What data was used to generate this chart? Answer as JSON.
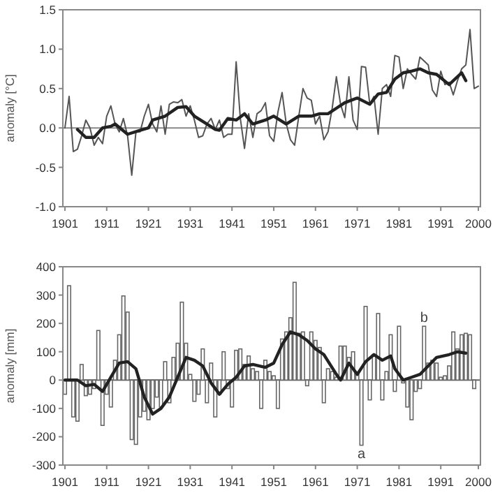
{
  "chart_data": [
    {
      "type": "line",
      "ylabel": "anomaly [°C]",
      "xlim": [
        1900.5,
        2000.5
      ],
      "xticks": [
        1901,
        1911,
        1921,
        1931,
        1941,
        1951,
        1961,
        1971,
        1981,
        1991,
        2000
      ],
      "ylim": [
        -1,
        1.5
      ],
      "yticks": [
        {
          "value": -1,
          "label": "-1.0"
        },
        -0.5,
        {
          "value": 0,
          "label": "0.0"
        },
        0.5,
        {
          "value": 1,
          "label": "1.0"
        },
        1.5
      ],
      "grid": false,
      "ref_lines": [
        {
          "axis": "y",
          "value": 0,
          "color": "#888888"
        }
      ],
      "x": [
        1901,
        1902,
        1903,
        1904,
        1905,
        1906,
        1907,
        1908,
        1909,
        1910,
        1911,
        1912,
        1913,
        1914,
        1915,
        1916,
        1917,
        1918,
        1919,
        1920,
        1921,
        1922,
        1923,
        1924,
        1925,
        1926,
        1927,
        1928,
        1929,
        1930,
        1931,
        1932,
        1933,
        1934,
        1935,
        1936,
        1937,
        1938,
        1939,
        1940,
        1941,
        1942,
        1943,
        1944,
        1945,
        1946,
        1947,
        1948,
        1949,
        1950,
        1951,
        1952,
        1953,
        1954,
        1955,
        1956,
        1957,
        1958,
        1959,
        1960,
        1961,
        1962,
        1963,
        1964,
        1965,
        1966,
        1967,
        1968,
        1969,
        1970,
        1971,
        1972,
        1973,
        1974,
        1975,
        1976,
        1977,
        1978,
        1979,
        1980,
        1981,
        1982,
        1983,
        1984,
        1985,
        1986,
        1987,
        1988,
        1989,
        1990,
        1991,
        1992,
        1993,
        1994,
        1995,
        1996,
        1997,
        1998,
        1999,
        2000
      ],
      "series": [
        {
          "color": "#555555",
          "values": [
            0.0,
            0.4,
            -0.3,
            -0.27,
            -0.1,
            0.1,
            0.0,
            -0.22,
            -0.12,
            -0.2,
            0.15,
            0.28,
            0.05,
            -0.05,
            0.12,
            -0.1,
            -0.6,
            -0.05,
            -0.05,
            0.15,
            0.3,
            0.05,
            -0.05,
            0.28,
            -0.08,
            0.3,
            0.33,
            0.32,
            0.36,
            0.15,
            0.28,
            0.1,
            -0.12,
            -0.1,
            0.05,
            0.12,
            -0.02,
            0.1,
            -0.12,
            -0.08,
            -0.08,
            0.84,
            0.12,
            -0.26,
            0.18,
            -0.12,
            0.18,
            0.22,
            0.32,
            -0.1,
            -0.17,
            0.2,
            0.45,
            0.05,
            -0.15,
            -0.22,
            0.15,
            0.5,
            0.38,
            0.35,
            0.05,
            0.15,
            -0.15,
            -0.05,
            0.25,
            0.65,
            0.3,
            0.13,
            0.65,
            0.1,
            -0.02,
            0.78,
            0.77,
            0.3,
            0.4,
            -0.08,
            0.5,
            0.55,
            0.4,
            0.92,
            0.9,
            0.5,
            0.75,
            0.68,
            0.62,
            0.9,
            0.85,
            0.8,
            0.48,
            0.4,
            0.72,
            0.55,
            0.58,
            0.42,
            0.6,
            0.75,
            0.8,
            1.25,
            0.5,
            0.53
          ]
        },
        {
          "color": "#222222",
          "x": [
            1904,
            1906,
            1908,
            1910,
            1912,
            1913,
            1916,
            1919,
            1921,
            1922,
            1925,
            1928,
            1930,
            1932,
            1935,
            1937,
            1938,
            1940,
            1942,
            1944,
            1946,
            1949,
            1951,
            1954,
            1957,
            1960,
            1962,
            1964,
            1966,
            1968,
            1971,
            1974,
            1976,
            1978,
            1980,
            1982,
            1984,
            1986,
            1988,
            1990,
            1993,
            1996,
            1997
          ],
          "values": [
            -0.02,
            -0.12,
            -0.12,
            0.0,
            0.02,
            0.05,
            -0.08,
            -0.03,
            0.0,
            0.1,
            0.15,
            0.26,
            0.27,
            0.15,
            0.05,
            -0.02,
            -0.03,
            0.12,
            0.1,
            0.18,
            0.05,
            0.1,
            0.15,
            0.05,
            0.15,
            0.15,
            0.18,
            0.18,
            0.25,
            0.32,
            0.38,
            0.3,
            0.43,
            0.45,
            0.62,
            0.7,
            0.72,
            0.75,
            0.7,
            0.68,
            0.55,
            0.7,
            0.6
          ]
        }
      ]
    },
    {
      "type": "bar",
      "ylabel": "anomaly [mm]",
      "xlim": [
        1900.5,
        2000.5
      ],
      "xticks": [
        1901,
        1911,
        1921,
        1931,
        1941,
        1951,
        1961,
        1971,
        1981,
        1991,
        2000
      ],
      "ylim": [
        -300,
        400
      ],
      "yticks": [
        -300,
        -200,
        -100,
        0,
        100,
        200,
        300,
        400
      ],
      "grid": false,
      "ref_lines": [
        {
          "axis": "y",
          "value": 0,
          "color": "#666666"
        }
      ],
      "annotations": [
        {
          "text": "a",
          "x": 1972,
          "y": -230
        },
        {
          "text": "b",
          "x": 1987,
          "y": 190
        }
      ],
      "x": [
        1901,
        1902,
        1903,
        1904,
        1905,
        1906,
        1907,
        1908,
        1909,
        1910,
        1911,
        1912,
        1913,
        1914,
        1915,
        1916,
        1917,
        1918,
        1919,
        1920,
        1921,
        1922,
        1923,
        1924,
        1925,
        1926,
        1927,
        1928,
        1929,
        1930,
        1931,
        1932,
        1933,
        1934,
        1935,
        1936,
        1937,
        1938,
        1939,
        1940,
        1941,
        1942,
        1943,
        1944,
        1945,
        1946,
        1947,
        1948,
        1949,
        1950,
        1951,
        1952,
        1953,
        1954,
        1955,
        1956,
        1957,
        1958,
        1959,
        1960,
        1961,
        1962,
        1963,
        1964,
        1965,
        1966,
        1967,
        1968,
        1969,
        1970,
        1971,
        1972,
        1973,
        1974,
        1975,
        1976,
        1977,
        1978,
        1979,
        1980,
        1981,
        1982,
        1983,
        1984,
        1985,
        1986,
        1987,
        1988,
        1989,
        1990,
        1991,
        1992,
        1993,
        1994,
        1995,
        1996,
        1997,
        1998,
        1999
      ],
      "series": [
        {
          "color": "#ffffff",
          "values": [
            -50,
            333,
            -130,
            -145,
            55,
            -55,
            -50,
            -30,
            175,
            -160,
            -50,
            -95,
            70,
            160,
            297,
            240,
            -210,
            -227,
            -130,
            -110,
            -140,
            -100,
            -60,
            -95,
            65,
            -80,
            80,
            130,
            275,
            130,
            20,
            -75,
            -50,
            110,
            -80,
            60,
            -130,
            -50,
            100,
            -30,
            -95,
            105,
            110,
            55,
            85,
            40,
            30,
            -100,
            70,
            30,
            15,
            -100,
            145,
            170,
            220,
            345,
            165,
            170,
            -20,
            170,
            140,
            115,
            -80,
            40,
            30,
            10,
            120,
            120,
            80,
            100,
            20,
            -230,
            260,
            -70,
            90,
            235,
            -70,
            30,
            160,
            -40,
            190,
            -10,
            -95,
            -140,
            -40,
            -30,
            190,
            60,
            70,
            60,
            10,
            15,
            50,
            170,
            110,
            160,
            165,
            160,
            -30
          ]
        },
        {
          "type": "line",
          "color": "#222222",
          "x": [
            1901,
            1904,
            1906,
            1908,
            1910,
            1912,
            1914,
            1916,
            1918,
            1920,
            1922,
            1924,
            1926,
            1928,
            1930,
            1932,
            1934,
            1936,
            1938,
            1940,
            1942,
            1944,
            1946,
            1949,
            1951,
            1953,
            1955,
            1957,
            1959,
            1961,
            1963,
            1966,
            1967,
            1969,
            1971,
            1973,
            1975,
            1977,
            1979,
            1980,
            1982,
            1984,
            1986,
            1988,
            1990,
            1993,
            1995,
            1997
          ],
          "values": [
            0,
            0,
            -20,
            -15,
            -40,
            10,
            60,
            65,
            40,
            -60,
            -120,
            -100,
            -60,
            10,
            80,
            70,
            50,
            -10,
            -50,
            -15,
            10,
            50,
            55,
            45,
            60,
            125,
            170,
            160,
            140,
            110,
            90,
            20,
            0,
            60,
            20,
            65,
            90,
            70,
            85,
            40,
            0,
            10,
            20,
            50,
            80,
            90,
            100,
            95
          ]
        }
      ]
    }
  ]
}
